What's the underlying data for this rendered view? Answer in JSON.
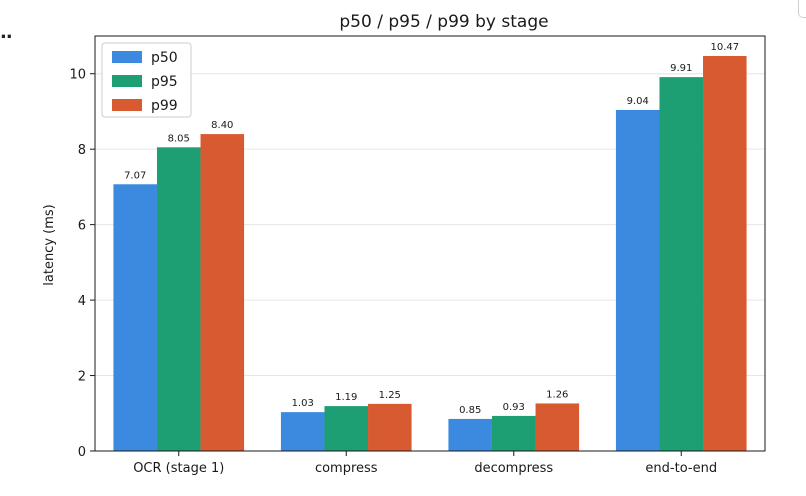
{
  "page": {
    "ellipsis": ".."
  },
  "chart_data": {
    "type": "bar",
    "title": "p50 / p95 / p99 by stage",
    "xlabel": "",
    "ylabel": "latency (ms)",
    "categories": [
      "OCR (stage 1)",
      "compress",
      "decompress",
      "end-to-end"
    ],
    "series": [
      {
        "name": "p50",
        "color": "#3b8ae0",
        "values": [
          7.07,
          1.03,
          0.85,
          9.04
        ]
      },
      {
        "name": "p95",
        "color": "#1e9e73",
        "values": [
          8.05,
          1.19,
          0.93,
          9.91
        ]
      },
      {
        "name": "p99",
        "color": "#d85a30",
        "values": [
          8.4,
          1.25,
          1.26,
          10.47
        ]
      }
    ],
    "ylim": [
      0,
      11
    ],
    "yticks": [
      0,
      2,
      4,
      6,
      8,
      10
    ],
    "grid": "horizontal",
    "legend": "top-left",
    "value_format": "2 decimals"
  }
}
